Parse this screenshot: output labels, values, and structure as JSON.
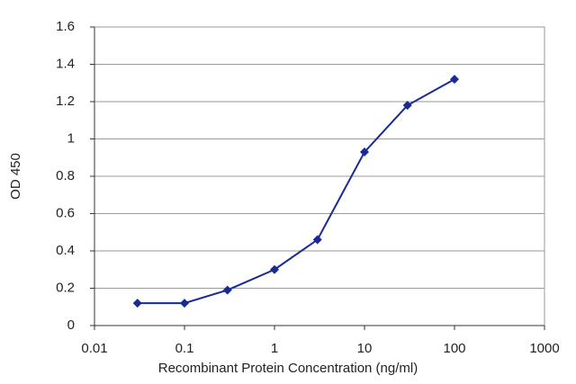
{
  "chart_data": {
    "type": "line",
    "x_label": "Recombinant Protein Concentration (ng/ml)",
    "y_label": "OD 450",
    "x": [
      0.03,
      0.1,
      0.3,
      1,
      3,
      10,
      30,
      100
    ],
    "series": [
      {
        "color": "#1a2a94",
        "values": [
          0.12,
          0.12,
          0.19,
          0.3,
          0.46,
          0.93,
          1.18,
          1.32
        ]
      }
    ],
    "xscale": "log",
    "xlim": [
      0.01,
      1000
    ],
    "xticks": [
      0.01,
      0.1,
      1,
      10,
      100,
      1000
    ],
    "ylim": [
      0,
      1.6
    ],
    "yticks": [
      0,
      0.2,
      0.4,
      0.6,
      0.8,
      1,
      1.2,
      1.4,
      1.6
    ],
    "grid": true
  }
}
